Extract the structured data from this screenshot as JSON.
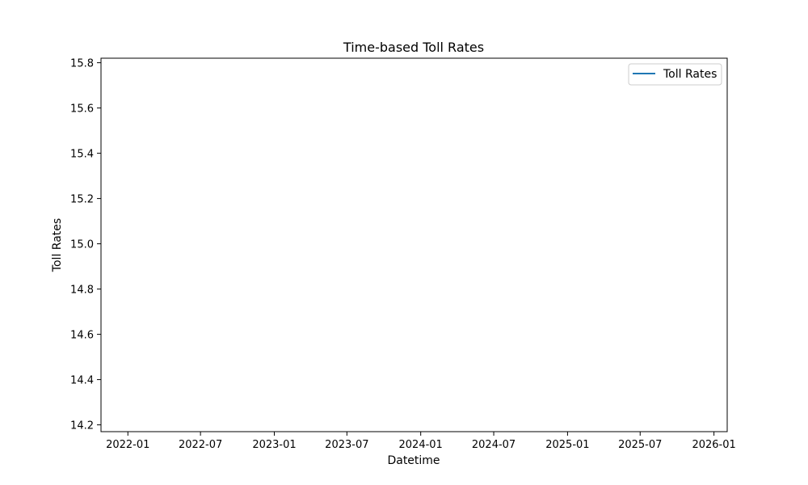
{
  "chart_data": {
    "type": "line",
    "title": "Time-based Toll Rates",
    "xlabel": "Datetime",
    "ylabel": "Toll Rates",
    "x_ticks": [
      "2022-01",
      "2022-07",
      "2023-01",
      "2023-07",
      "2024-01",
      "2024-07",
      "2025-01",
      "2025-07",
      "2026-01"
    ],
    "y_ticks": [
      "14.2",
      "14.4",
      "14.6",
      "14.8",
      "15.0",
      "15.2",
      "15.4",
      "15.6",
      "15.8"
    ],
    "xlim": [
      "2021-10-26",
      "2026-02-03"
    ],
    "ylim": [
      14.17,
      15.82
    ],
    "grid": false,
    "legend_position": "top-right",
    "series": [
      {
        "name": "Toll Rates",
        "color": "#1f77b4",
        "points": []
      }
    ]
  }
}
